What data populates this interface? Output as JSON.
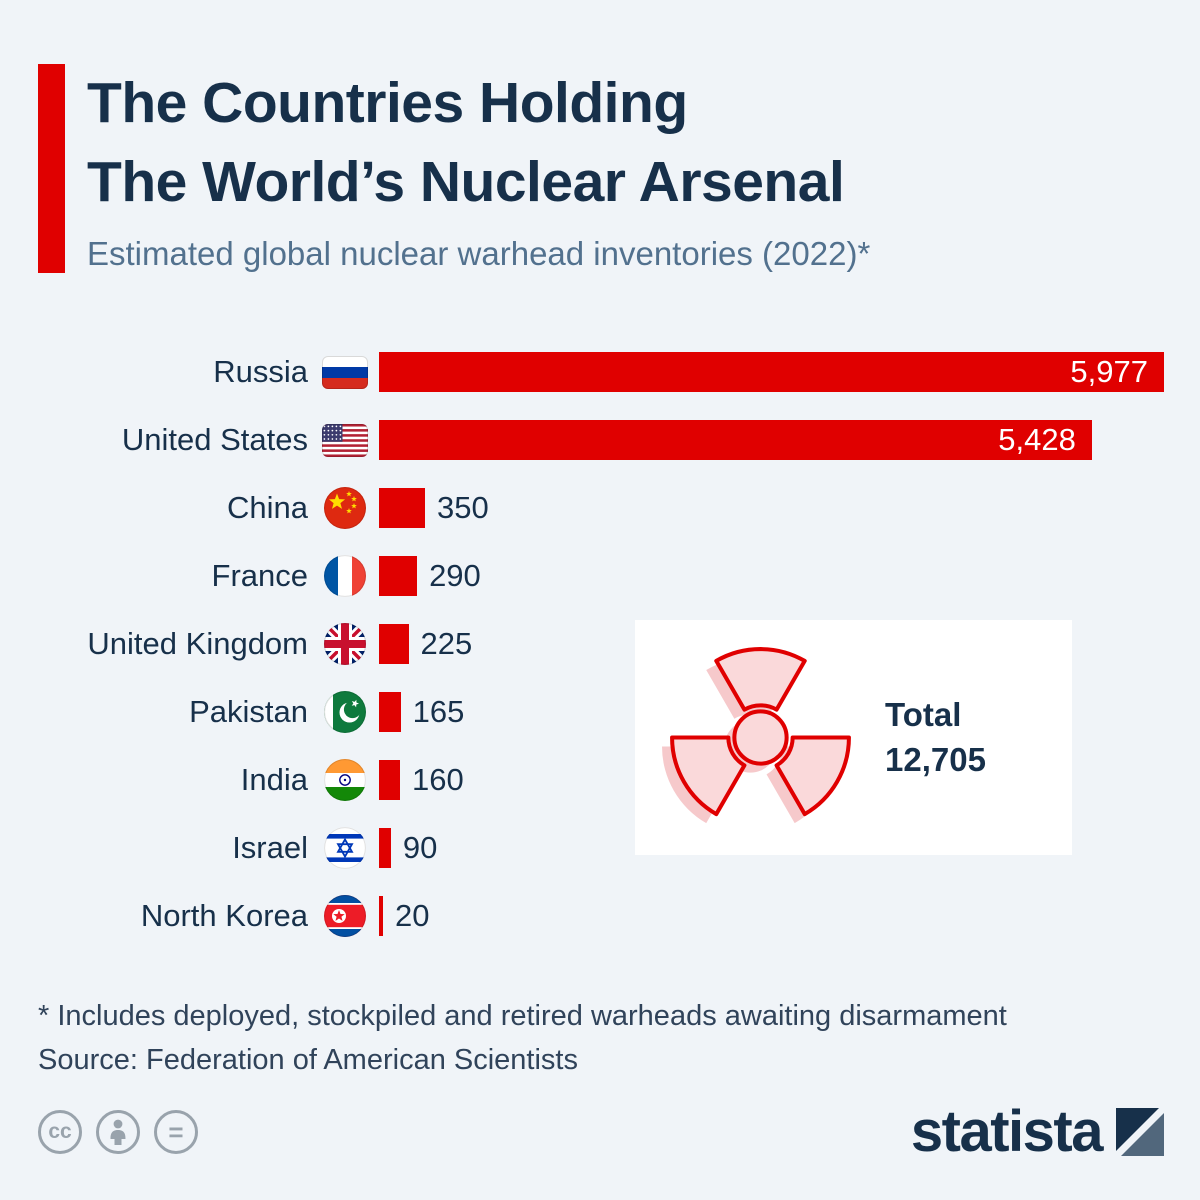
{
  "header": {
    "title_line1": "The Countries Holding",
    "title_line2": "The World’s Nuclear Arsenal",
    "subtitle": "Estimated global nuclear warhead inventories (2022)*"
  },
  "chart_data": {
    "type": "bar",
    "orientation": "horizontal",
    "title": "The Countries Holding The World’s Nuclear Arsenal",
    "subtitle": "Estimated global nuclear warhead inventories (2022)*",
    "categories": [
      "Russia",
      "United States",
      "China",
      "France",
      "United Kingdom",
      "Pakistan",
      "India",
      "Israel",
      "North Korea"
    ],
    "values": [
      5977,
      5428,
      350,
      290,
      225,
      165,
      160,
      90,
      20
    ],
    "value_labels": [
      "5,977",
      "5,428",
      "350",
      "290",
      "225",
      "165",
      "160",
      "90",
      "20"
    ],
    "flag_icons": [
      "russia-flag-icon",
      "united-states-flag-icon",
      "china-flag-icon",
      "france-flag-icon",
      "united-kingdom-flag-icon",
      "pakistan-flag-icon",
      "india-flag-icon",
      "israel-flag-icon",
      "north-korea-flag-icon"
    ],
    "xlim": [
      0,
      6000
    ],
    "grid": false,
    "legend": false,
    "bar_color": "#e00000",
    "total": {
      "label": "Total",
      "value": "12,705",
      "icon": "radiation-icon"
    }
  },
  "footer": {
    "note": "* Includes deployed, stockpiled and retired warheads awaiting disarmament",
    "source": "Source: Federation of American Scientists"
  },
  "branding": {
    "logo_text": "statista",
    "license_icons": [
      "creative-commons-icon",
      "attribution-icon",
      "equals-icon"
    ]
  },
  "colors": {
    "background": "#f0f4f8",
    "accent_red": "#e00000",
    "title_navy": "#17304a",
    "subtitle_blue": "#52718e",
    "footnote": "#30435a",
    "bar_value_inside": "#ffffff"
  }
}
